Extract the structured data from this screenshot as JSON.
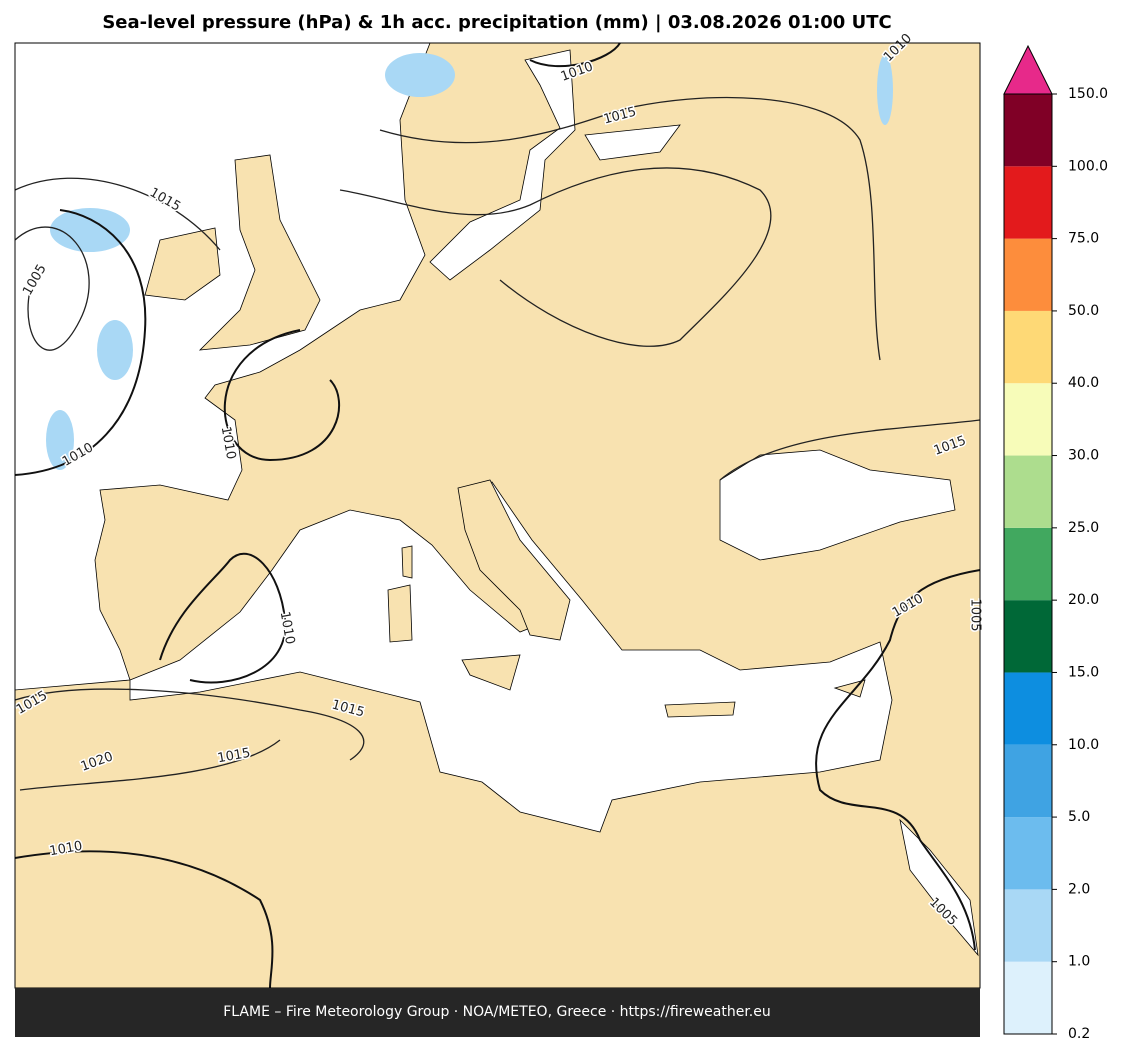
{
  "title": "Sea-level pressure (hPa) & 1h acc. precipitation (mm)  |  03.08.2026 01:00 UTC",
  "footer": "FLAME – Fire Meteorology Group · NOA/METEO, Greece · https://fireweather.eu",
  "colorbar": {
    "ticks": [
      0.2,
      {
        "value": 1,
        "label": "1.0"
      },
      {
        "value": 2,
        "label": "2.0"
      },
      {
        "value": 5,
        "label": "5.0"
      },
      {
        "value": 10,
        "label": "10.0"
      },
      {
        "value": 15,
        "label": "15.0"
      },
      {
        "value": 20,
        "label": "20.0"
      },
      {
        "value": 25,
        "label": "25.0"
      },
      {
        "value": 30,
        "label": "30.0"
      },
      {
        "value": 40,
        "label": "40.0"
      },
      {
        "value": 50,
        "label": "50.0"
      },
      {
        "value": 75,
        "label": "75.0"
      },
      {
        "value": 100,
        "label": "100.0"
      },
      {
        "value": 150,
        "label": "150.0"
      }
    ],
    "colors": [
      "#ddf1fc",
      "#a9d8f5",
      "#6cbcee",
      "#3fa3e3",
      "#0d8ee0",
      "#006837",
      "#41a85f",
      "#addd8e",
      "#f7fcb9",
      "#fed976",
      "#fd8d3c",
      "#e31a1c",
      "#800026"
    ],
    "extend_color": "#e7298a"
  },
  "contour_labels": [
    "1015",
    "1005",
    "1010",
    "1010",
    "1010",
    "1015",
    "1010",
    "1015",
    "1010",
    "1015",
    "1020",
    "1015",
    "1015",
    "1010",
    "1005",
    "1010",
    "1005"
  ]
}
